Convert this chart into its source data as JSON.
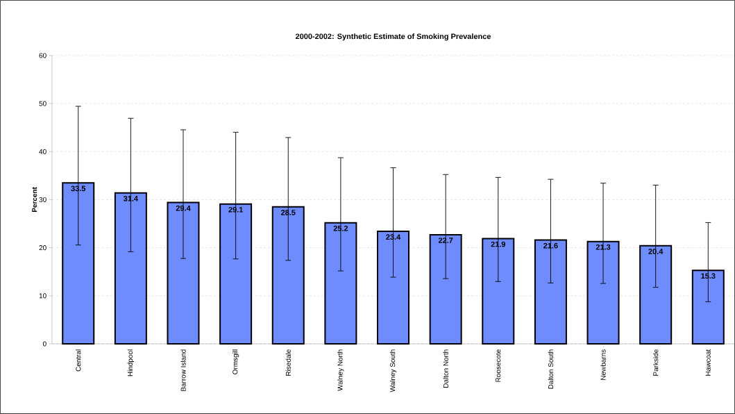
{
  "chart_data": {
    "type": "bar",
    "title": "2000-2002: Synthetic Estimate of Smoking Prevalence",
    "ylabel": "Percent",
    "categories": [
      "Central",
      "Hindpool",
      "Barrow Island",
      "Ormsgill",
      "Risedale",
      "Walney North",
      "Walney South",
      "Dalton North",
      "Roosecote",
      "Dalton South",
      "Newbarns",
      "Parkside",
      "Hawcoat"
    ],
    "values": [
      33.5,
      31.4,
      29.4,
      29.1,
      28.5,
      25.2,
      23.4,
      22.7,
      21.9,
      21.6,
      21.3,
      20.4,
      15.3
    ],
    "errors": [
      [
        20.5,
        49.5
      ],
      [
        19.1,
        47.0
      ],
      [
        17.7,
        44.6
      ],
      [
        17.6,
        44.1
      ],
      [
        17.3,
        43.0
      ],
      [
        15.1,
        38.8
      ],
      [
        13.8,
        36.7
      ],
      [
        13.5,
        35.3
      ],
      [
        12.9,
        34.7
      ],
      [
        12.6,
        34.3
      ],
      [
        12.5,
        33.5
      ],
      [
        11.7,
        33.1
      ],
      [
        8.7,
        25.3
      ]
    ],
    "color": "#6f8cff",
    "data_labels": true,
    "grid": "y",
    "ylim": [
      0,
      60
    ],
    "yticks": [
      0,
      10,
      20,
      30,
      40,
      50,
      60
    ]
  }
}
